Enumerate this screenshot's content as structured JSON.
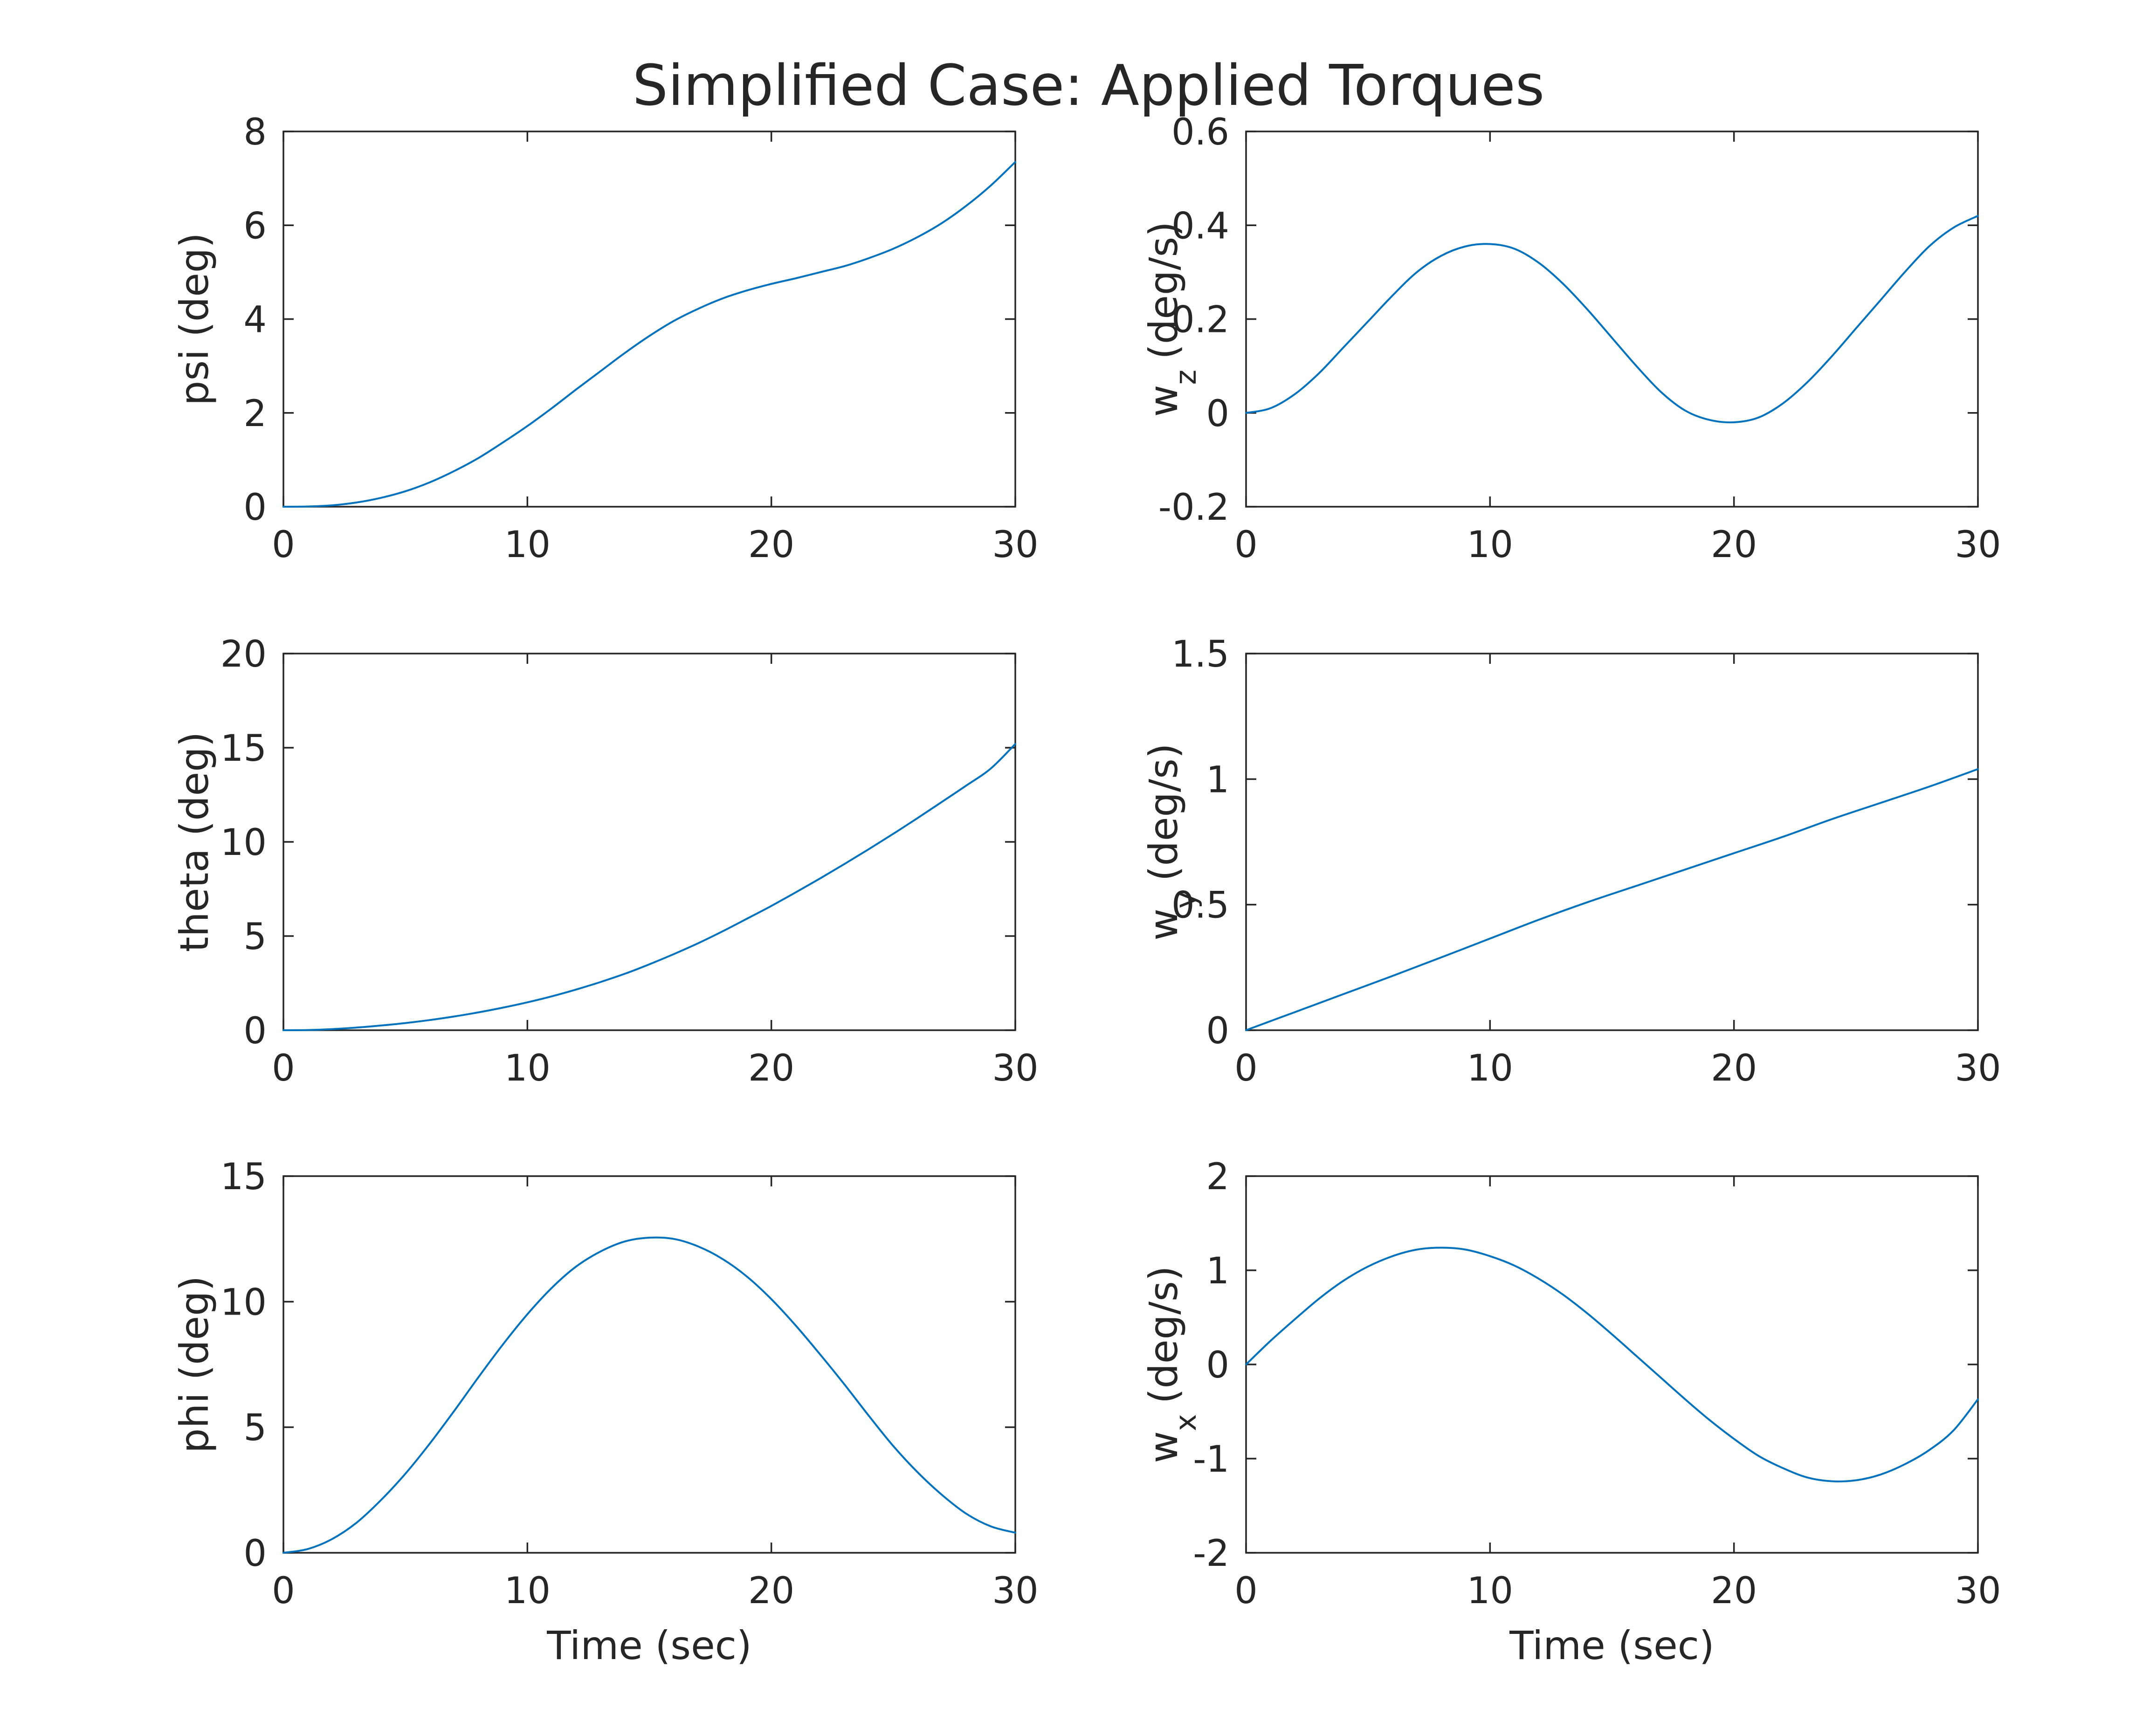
{
  "chart_data": {
    "type": "line",
    "title": "Simplified Case: Applied Torques",
    "line_color": "#0072bd",
    "grid": false,
    "legend": "none",
    "subplots": [
      {
        "id": "psi",
        "ylabel": "psi (deg)",
        "xlabel": "",
        "xlim": [
          0,
          30
        ],
        "ylim": [
          0,
          8
        ],
        "xticks": [
          "0",
          "10",
          "20",
          "30"
        ],
        "yticks": [
          "0",
          "2",
          "4",
          "6",
          "8"
        ],
        "x": [
          0,
          1,
          2,
          3,
          4,
          5,
          6,
          7,
          8,
          9,
          10,
          11,
          12,
          13,
          14,
          15,
          16,
          17,
          18,
          19,
          20,
          21,
          22,
          23,
          24,
          25,
          26,
          27,
          28,
          29,
          30
        ],
        "y": [
          0,
          0.005,
          0.03,
          0.09,
          0.19,
          0.33,
          0.52,
          0.76,
          1.04,
          1.37,
          1.72,
          2.1,
          2.5,
          2.89,
          3.28,
          3.64,
          3.96,
          4.22,
          4.44,
          4.61,
          4.75,
          4.87,
          5.0,
          5.13,
          5.3,
          5.5,
          5.75,
          6.05,
          6.42,
          6.85,
          7.35
        ]
      },
      {
        "id": "wz",
        "ylabel": "w_z (deg/s)",
        "ylabel_main": "w",
        "ylabel_sub": "z",
        "ylabel_unit": "(deg/s)",
        "xlabel": "",
        "xlim": [
          0,
          30
        ],
        "ylim": [
          -0.2,
          0.6
        ],
        "xticks": [
          "0",
          "10",
          "20",
          "30"
        ],
        "yticks": [
          "-0.2",
          "0",
          "0.2",
          "0.4",
          "0.6"
        ],
        "x": [
          0,
          1,
          2,
          3,
          4,
          5,
          6,
          7,
          8,
          9,
          10,
          11,
          12,
          13,
          14,
          15,
          16,
          17,
          18,
          19,
          20,
          21,
          22,
          23,
          24,
          25,
          26,
          27,
          28,
          29,
          30
        ],
        "y": [
          0,
          0.01,
          0.04,
          0.085,
          0.14,
          0.195,
          0.25,
          0.3,
          0.335,
          0.355,
          0.36,
          0.35,
          0.32,
          0.275,
          0.22,
          0.16,
          0.1,
          0.045,
          0.005,
          -0.015,
          -0.02,
          -0.01,
          0.02,
          0.065,
          0.12,
          0.18,
          0.24,
          0.3,
          0.355,
          0.395,
          0.42
        ]
      },
      {
        "id": "theta",
        "ylabel": "theta (deg)",
        "xlabel": "",
        "xlim": [
          0,
          30
        ],
        "ylim": [
          0,
          20
        ],
        "xticks": [
          "0",
          "10",
          "20",
          "30"
        ],
        "yticks": [
          "0",
          "5",
          "10",
          "15",
          "20"
        ],
        "x": [
          0,
          1,
          2,
          3,
          4,
          5,
          6,
          7,
          8,
          9,
          10,
          11,
          12,
          13,
          14,
          15,
          16,
          17,
          18,
          19,
          20,
          21,
          22,
          23,
          24,
          25,
          26,
          27,
          28,
          29,
          30
        ],
        "y": [
          0,
          0.01,
          0.06,
          0.14,
          0.25,
          0.38,
          0.54,
          0.73,
          0.95,
          1.2,
          1.48,
          1.8,
          2.16,
          2.56,
          3.0,
          3.5,
          4.04,
          4.62,
          5.25,
          5.92,
          6.6,
          7.32,
          8.06,
          8.83,
          9.62,
          10.43,
          11.27,
          12.13,
          13.0,
          13.9,
          15.2
        ]
      },
      {
        "id": "wy",
        "ylabel": "w_y (deg/s)",
        "ylabel_main": "w",
        "ylabel_sub": "y",
        "ylabel_unit": "(deg/s)",
        "xlabel": "",
        "xlim": [
          0,
          30
        ],
        "ylim": [
          0,
          1.5
        ],
        "xticks": [
          "0",
          "10",
          "20",
          "30"
        ],
        "yticks": [
          "0",
          "0.5",
          "1",
          "1.5"
        ],
        "x": [
          0,
          2,
          4,
          6,
          8,
          10,
          12,
          14,
          16,
          18,
          20,
          22,
          24,
          26,
          28,
          30
        ],
        "y": [
          0,
          0.072,
          0.144,
          0.216,
          0.29,
          0.365,
          0.44,
          0.51,
          0.575,
          0.64,
          0.705,
          0.77,
          0.84,
          0.905,
          0.97,
          1.04
        ]
      },
      {
        "id": "phi",
        "ylabel": "phi (deg)",
        "xlabel": "Time (sec)",
        "xlim": [
          0,
          30
        ],
        "ylim": [
          0,
          15
        ],
        "xticks": [
          "0",
          "10",
          "20",
          "30"
        ],
        "yticks": [
          "0",
          "5",
          "10",
          "15"
        ],
        "x": [
          0,
          1,
          2,
          3,
          4,
          5,
          6,
          7,
          8,
          9,
          10,
          11,
          12,
          13,
          14,
          15,
          16,
          17,
          18,
          19,
          20,
          21,
          22,
          23,
          24,
          25,
          26,
          27,
          28,
          29,
          30
        ],
        "y": [
          0,
          0.15,
          0.55,
          1.2,
          2.1,
          3.15,
          4.35,
          5.65,
          7.0,
          8.3,
          9.5,
          10.55,
          11.4,
          12.0,
          12.4,
          12.55,
          12.5,
          12.2,
          11.7,
          11.0,
          10.1,
          9.05,
          7.9,
          6.7,
          5.45,
          4.25,
          3.2,
          2.3,
          1.55,
          1.05,
          0.8
        ]
      },
      {
        "id": "wx",
        "ylabel": "w_x (deg/s)",
        "ylabel_main": "w",
        "ylabel_sub": "x",
        "ylabel_unit": "(deg/s)",
        "xlabel": "Time (sec)",
        "xlim": [
          0,
          30
        ],
        "ylim": [
          -2,
          2
        ],
        "xticks": [
          "0",
          "10",
          "20",
          "30"
        ],
        "yticks": [
          "-2",
          "-1",
          "0",
          "1",
          "2"
        ],
        "x": [
          0,
          1,
          2,
          3,
          4,
          5,
          6,
          7,
          8,
          9,
          10,
          11,
          12,
          13,
          14,
          15,
          16,
          17,
          18,
          19,
          20,
          21,
          22,
          23,
          24,
          25,
          26,
          27,
          28,
          29,
          30
        ],
        "y": [
          0,
          0.25,
          0.48,
          0.7,
          0.89,
          1.04,
          1.15,
          1.22,
          1.24,
          1.22,
          1.15,
          1.05,
          0.91,
          0.74,
          0.54,
          0.32,
          0.09,
          -0.14,
          -0.37,
          -0.59,
          -0.79,
          -0.97,
          -1.1,
          -1.2,
          -1.24,
          -1.23,
          -1.17,
          -1.06,
          -0.91,
          -0.7,
          -0.37
        ]
      }
    ]
  }
}
